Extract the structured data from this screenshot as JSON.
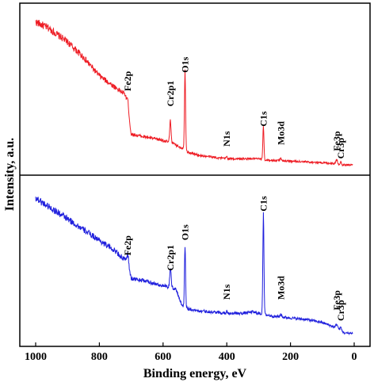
{
  "chart_data": {
    "type": "line",
    "xlabel": "Binding energy, eV",
    "ylabel": "Intensity, a.u.",
    "xlim": [
      1000,
      0
    ],
    "x_ticks": [
      1000,
      800,
      600,
      400,
      200,
      0
    ],
    "x_tick_labels": [
      "1000",
      "800",
      "600",
      "400",
      "200",
      "0"
    ],
    "grid": false,
    "legend": "none",
    "panels": [
      {
        "color": "#ee1c24",
        "ylim": [
          0,
          100
        ],
        "background_anchors": [
          [
            1000,
            95
          ],
          [
            980,
            93
          ],
          [
            960,
            91
          ],
          [
            900,
            82
          ],
          [
            850,
            72
          ],
          [
            800,
            60
          ],
          [
            760,
            54
          ],
          [
            720,
            48
          ],
          [
            700,
            22
          ],
          [
            650,
            20
          ],
          [
            600,
            18
          ],
          [
            570,
            16
          ],
          [
            540,
            13
          ],
          [
            520,
            10
          ],
          [
            480,
            8
          ],
          [
            440,
            7
          ],
          [
            400,
            6
          ],
          [
            300,
            6
          ],
          [
            280,
            5
          ],
          [
            250,
            5
          ],
          [
            200,
            4.5
          ],
          [
            150,
            4
          ],
          [
            100,
            3.5
          ],
          [
            60,
            3
          ],
          [
            40,
            2
          ],
          [
            0,
            2
          ]
        ],
        "peaks": [
          {
            "label": "Fe2p",
            "x": 711,
            "height": 8,
            "width": 5,
            "label_y": 50
          },
          {
            "label": "Cr2p1",
            "x": 577,
            "height": 14,
            "width": 3,
            "label_y": 40
          },
          {
            "label": "O1s",
            "x": 531,
            "height": 52,
            "width": 2.5,
            "label_y": 62
          },
          {
            "label": "N1s",
            "x": 400,
            "height": 1.5,
            "width": 3,
            "label_y": 14
          },
          {
            "label": "C1s",
            "x": 285,
            "height": 22,
            "width": 2.5,
            "label_y": 27
          },
          {
            "label": "Mo3d",
            "x": 230,
            "height": 1.5,
            "width": 4,
            "label_y": 15
          },
          {
            "label": "Fe3p",
            "x": 55,
            "height": 2.5,
            "width": 4,
            "label_y": 11
          },
          {
            "label": "Cr3p",
            "x": 42,
            "height": 2,
            "width": 3,
            "label_y": 6
          }
        ]
      },
      {
        "color": "#1f1fdd",
        "ylim": [
          0,
          100
        ],
        "background_anchors": [
          [
            1000,
            93
          ],
          [
            980,
            90
          ],
          [
            950,
            86
          ],
          [
            900,
            79
          ],
          [
            850,
            72
          ],
          [
            800,
            65
          ],
          [
            750,
            58
          ],
          [
            720,
            52
          ],
          [
            700,
            40
          ],
          [
            650,
            38
          ],
          [
            600,
            35
          ],
          [
            560,
            33
          ],
          [
            540,
            22
          ],
          [
            520,
            20
          ],
          [
            500,
            19
          ],
          [
            450,
            18
          ],
          [
            400,
            17
          ],
          [
            350,
            17
          ],
          [
            320,
            18
          ],
          [
            300,
            17
          ],
          [
            250,
            15
          ],
          [
            200,
            14
          ],
          [
            150,
            13
          ],
          [
            100,
            11
          ],
          [
            50,
            7
          ],
          [
            30,
            4
          ],
          [
            0,
            4
          ]
        ],
        "peaks": [
          {
            "label": "Fe2p",
            "x": 711,
            "height": 9,
            "width": 5,
            "label_y": 55
          },
          {
            "label": "Cr2p1",
            "x": 577,
            "height": 13,
            "width": 3,
            "label_y": 45
          },
          {
            "label": "O1s",
            "x": 531,
            "height": 40,
            "width": 2.5,
            "label_y": 65
          },
          {
            "label": "N1s",
            "x": 400,
            "height": 1.5,
            "width": 3,
            "label_y": 26
          },
          {
            "label": "C1s",
            "x": 285,
            "height": 65,
            "width": 2.5,
            "label_y": 84
          },
          {
            "label": "Mo3d",
            "x": 230,
            "height": 1.5,
            "width": 4,
            "label_y": 26
          },
          {
            "label": "Fe3p",
            "x": 55,
            "height": 2.5,
            "width": 4,
            "label_y": 19
          },
          {
            "label": "Cr3p",
            "x": 42,
            "height": 2,
            "width": 3,
            "label_y": 12
          }
        ]
      }
    ]
  }
}
